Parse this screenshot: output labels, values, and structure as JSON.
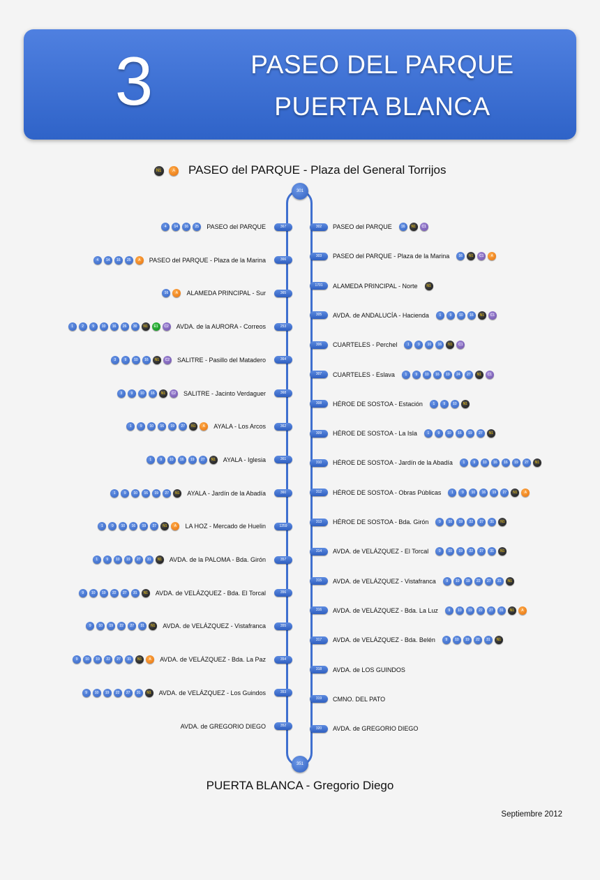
{
  "header": {
    "line": "3",
    "title1": "PASEO DEL PARQUE",
    "title2": "PUERTA BLANCA"
  },
  "start": {
    "badges": [
      "N1",
      "A"
    ],
    "name": "PASEO del PARQUE - Plaza del General Torrijos",
    "code": "301"
  },
  "end": {
    "name": "PUERTA BLANCA - Gregorio Diego",
    "code": "351"
  },
  "date": "Septiembre 2012",
  "left_stops": [
    {
      "code": "367",
      "name": "PASEO del PARQUE",
      "badges": [
        "4",
        "14",
        "16",
        "25"
      ]
    },
    {
      "code": "366",
      "name": "PASEO del PARQUE - Plaza de la Marina",
      "badges": [
        "4",
        "14",
        "16",
        "25",
        "A"
      ]
    },
    {
      "code": "365",
      "name": "ALAMEDA PRINCIPAL - Sur",
      "badges": [
        "16",
        "A"
      ]
    },
    {
      "code": "253",
      "name": "AVDA. de la AURORA - Correos",
      "badges": [
        "1",
        "2",
        "9",
        "10",
        "16",
        "26",
        "30",
        "N1",
        "E1",
        "C2"
      ]
    },
    {
      "code": "364",
      "name": "SALITRE - Pasillo del Matadero",
      "badges": [
        "3",
        "9",
        "10",
        "16",
        "N1",
        "C2"
      ]
    },
    {
      "code": "368",
      "name": "SALITRE - Jacinto Verdaguer",
      "badges": [
        "3",
        "9",
        "10",
        "16",
        "N1",
        "C2"
      ]
    },
    {
      "code": "362",
      "name": "AYALA - Los Arcos",
      "badges": [
        "1",
        "9",
        "10",
        "16",
        "19",
        "27",
        "N1",
        "A"
      ]
    },
    {
      "code": "361",
      "name": "AYALA - Iglesia",
      "badges": [
        "1",
        "9",
        "10",
        "16",
        "19",
        "27",
        "N1"
      ]
    },
    {
      "code": "360",
      "name": "AYALA - Jardín de la Abadía",
      "badges": [
        "1",
        "9",
        "10",
        "16",
        "19",
        "27",
        "N1"
      ]
    },
    {
      "code": "1259",
      "name": "LA HOZ - Mercado de Huelin",
      "badges": [
        "1",
        "9",
        "10",
        "16",
        "19",
        "27",
        "N1",
        "A"
      ]
    },
    {
      "code": "357",
      "name": "AVDA. de la PALOMA - Bda. Girón",
      "badges": [
        "1",
        "9",
        "10",
        "19",
        "27",
        "31",
        "N1"
      ]
    },
    {
      "code": "356",
      "name": "AVDA. de VELÁZQUEZ - Bda. El Torcal",
      "badges": [
        "9",
        "10",
        "19",
        "22",
        "27",
        "31",
        "N1"
      ]
    },
    {
      "code": "355",
      "name": "AVDA. de VELÁZQUEZ - Vistafranca",
      "badges": [
        "9",
        "10",
        "19",
        "22",
        "27",
        "31",
        "N1"
      ]
    },
    {
      "code": "354",
      "name": "AVDA. de VELÁZQUEZ - Bda. La Paz",
      "badges": [
        "9",
        "10",
        "19",
        "22",
        "27",
        "31",
        "N1",
        "A"
      ]
    },
    {
      "code": "353",
      "name": "AVDA. de VELÁZQUEZ - Los Guindos",
      "badges": [
        "9",
        "10",
        "19",
        "22",
        "27",
        "31",
        "N1"
      ]
    },
    {
      "code": "352",
      "name": "AVDA. de GREGORIO DIEGO",
      "badges": []
    }
  ],
  "right_stops": [
    {
      "code": "302",
      "name": "PASEO del PARQUE",
      "badges": [
        "16",
        "N1",
        "C1"
      ]
    },
    {
      "code": "303",
      "name": "PASEO del PARQUE - Plaza de la Marina",
      "badges": [
        "16",
        "N1",
        "C1",
        "A"
      ]
    },
    {
      "code": "1701",
      "name": "ALAMEDA PRINCIPAL - Norte",
      "badges": [
        "N1"
      ]
    },
    {
      "code": "305",
      "name": "AVDA. de ANDALUCÍA - Hacienda",
      "badges": [
        "1",
        "9",
        "10",
        "16",
        "N1",
        "C1"
      ]
    },
    {
      "code": "306",
      "name": "CUARTELES - Perchel",
      "badges": [
        "1",
        "9",
        "10",
        "16",
        "N1",
        "C1"
      ]
    },
    {
      "code": "307",
      "name": "CUARTELES - Eslava",
      "badges": [
        "1",
        "9",
        "10",
        "16",
        "19",
        "24",
        "27",
        "N1",
        "C1"
      ]
    },
    {
      "code": "308",
      "name": "HÉROE DE SOSTOA - Estación",
      "badges": [
        "1",
        "9",
        "10",
        "N1"
      ]
    },
    {
      "code": "309",
      "name": "HÉROE DE SOSTOA - La Isla",
      "badges": [
        "1",
        "9",
        "10",
        "16",
        "19",
        "27",
        "N1"
      ]
    },
    {
      "code": "310",
      "name": "HÉROE DE SOSTOA - Jardín de la Abadía",
      "badges": [
        "1",
        "9",
        "10",
        "16",
        "16",
        "19",
        "27",
        "N1"
      ]
    },
    {
      "code": "312",
      "name": "HÉROE DE SOSTOA - Obras Públicas",
      "badges": [
        "1",
        "9",
        "10",
        "16",
        "19",
        "27",
        "N1",
        "A"
      ]
    },
    {
      "code": "313",
      "name": "HÉROE DE SOSTOA - Bda. Girón",
      "badges": [
        "9",
        "10",
        "19",
        "22",
        "27",
        "31",
        "N1"
      ]
    },
    {
      "code": "314",
      "name": "AVDA. de VELÁZQUEZ - El Torcal",
      "badges": [
        "9",
        "10",
        "19",
        "22",
        "27",
        "31",
        "N1"
      ]
    },
    {
      "code": "315",
      "name": "AVDA. de VELÁZQUEZ - Vistafranca",
      "badges": [
        "9",
        "10",
        "19",
        "22",
        "27",
        "31",
        "N1"
      ]
    },
    {
      "code": "316",
      "name": "AVDA. de VELÁZQUEZ - Bda. La Luz",
      "badges": [
        "9",
        "10",
        "19",
        "22",
        "27",
        "31",
        "N1",
        "A"
      ]
    },
    {
      "code": "317",
      "name": "AVDA. de VELÁZQUEZ - Bda. Belén",
      "badges": [
        "9",
        "10",
        "19",
        "22",
        "31",
        "N1"
      ]
    },
    {
      "code": "318",
      "name": "AVDA. de LOS GUINDOS",
      "badges": []
    },
    {
      "code": "319",
      "name": "CMNO. DEL PATO",
      "badges": []
    },
    {
      "code": "320",
      "name": "AVDA. de GREGORIO DIEGO",
      "badges": []
    }
  ]
}
